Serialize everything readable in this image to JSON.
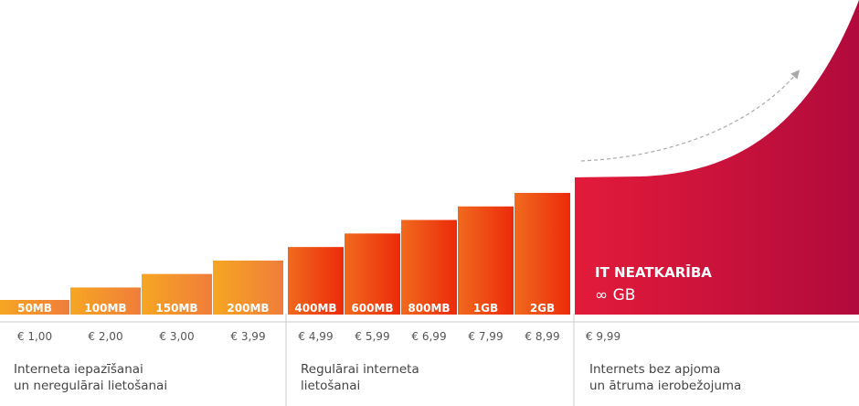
{
  "chart_data": {
    "type": "bar",
    "categories": [
      "50MB",
      "100MB",
      "150MB",
      "200MB",
      "400MB",
      "600MB",
      "800MB",
      "1GB",
      "2GB"
    ],
    "prices": [
      "€ 1,00",
      "€ 2,00",
      "€ 3,00",
      "€ 3,99",
      "€ 4,99",
      "€ 5,99",
      "€ 6,99",
      "€ 7,99",
      "€ 8,99"
    ],
    "values": [
      1.0,
      2.0,
      3.0,
      3.99,
      4.99,
      5.99,
      6.99,
      7.99,
      8.99
    ],
    "unlimited": {
      "title": "IT NEATKARĪBA",
      "amount": "∞ GB",
      "price": "€ 9,99",
      "value": 9.99
    },
    "groups": [
      {
        "line1": "Interneta iepazīšanai",
        "line2": "un neregulārai lietošanai"
      },
      {
        "line1": "Regulārai interneta",
        "line2": "lietošanai"
      },
      {
        "line1": "Internets bez apjoma",
        "line2": "un ātruma ierobežojuma"
      }
    ],
    "colors": {
      "orange_light": "#F6A623",
      "orange_mid": "#F07C30",
      "red_orange": "#EB3D10",
      "red": "#E4202A",
      "crimson": "#B8083C",
      "divider": "#cccccc",
      "text": "#444444"
    }
  }
}
